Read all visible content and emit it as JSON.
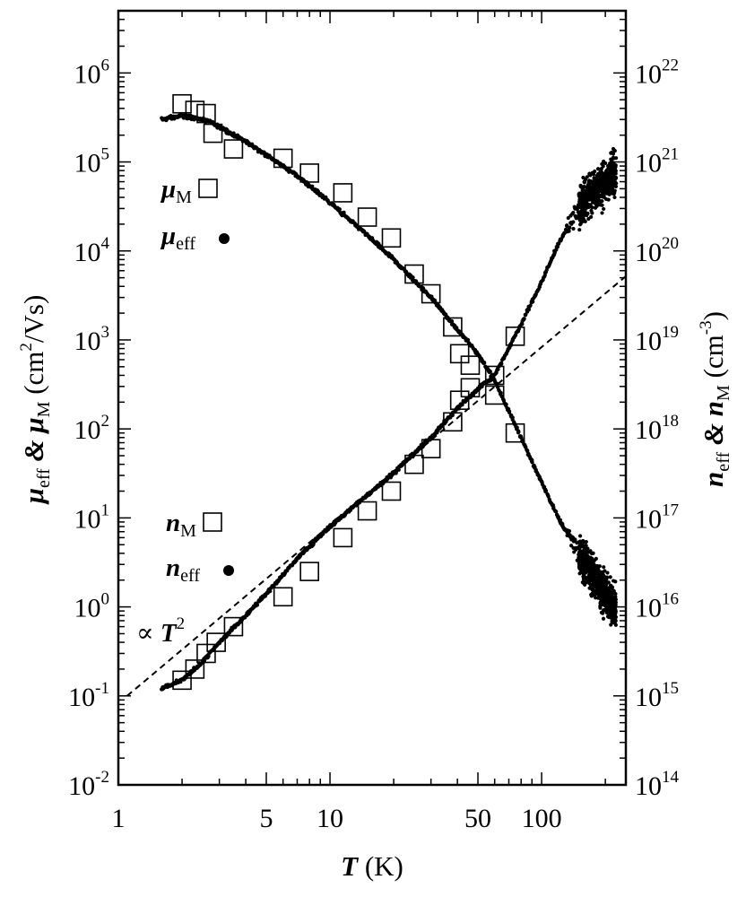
{
  "chart_data": {
    "type": "scatter",
    "x_axis": {
      "label": {
        "var": "T",
        "unit": " (K)"
      },
      "scale": "log",
      "range": [
        1,
        250
      ],
      "tick_labels": [
        "1",
        "5",
        "10",
        "50",
        "100"
      ],
      "tick_values": [
        1,
        5,
        10,
        50,
        100
      ]
    },
    "y_axis_left": {
      "label": {
        "part1": "μ",
        "sub1": "eff",
        "amp": " & ",
        "part2": "μ",
        "sub2": "M",
        "unit": " (cm",
        "sup": "2",
        "unit_end": "/Vs)"
      },
      "scale": "log",
      "range": [
        0.01,
        5000000
      ],
      "tick_labels": [
        {
          "base": "10",
          "exp": "6",
          "value": 1000000
        },
        {
          "base": "10",
          "exp": "5",
          "value": 100000
        },
        {
          "base": "10",
          "exp": "4",
          "value": 10000
        },
        {
          "base": "10",
          "exp": "3",
          "value": 1000
        },
        {
          "base": "10",
          "exp": "2",
          "value": 100
        },
        {
          "base": "10",
          "exp": "1",
          "value": 10
        },
        {
          "base": "10",
          "exp": "0",
          "value": 1
        },
        {
          "base": "10",
          "exp": "-1",
          "value": 0.1
        },
        {
          "base": "10",
          "exp": "-2",
          "value": 0.01
        }
      ]
    },
    "y_axis_right": {
      "label": {
        "part1": "n",
        "sub1": "eff",
        "amp": " & ",
        "part2": "n",
        "sub2": "M",
        "unit": " (cm",
        "sup": "-3",
        "unit_end": ")"
      },
      "scale": "log",
      "range": [
        100000000000000,
        5e+22
      ],
      "tick_labels": [
        {
          "base": "10",
          "exp": "22",
          "value": 1e+22
        },
        {
          "base": "10",
          "exp": "21",
          "value": 1e+21
        },
        {
          "base": "10",
          "exp": "20",
          "value": 1e+20
        },
        {
          "base": "10",
          "exp": "19",
          "value": 1e+19
        },
        {
          "base": "10",
          "exp": "18",
          "value": 1e+18
        },
        {
          "base": "10",
          "exp": "17",
          "value": 1e+17
        },
        {
          "base": "10",
          "exp": "16",
          "value": 1e+16
        },
        {
          "base": "10",
          "exp": "15",
          "value": 1000000000000000.0
        },
        {
          "base": "10",
          "exp": "14",
          "value": 100000000000000.0
        }
      ]
    },
    "series": [
      {
        "name": "μM",
        "axis": "left",
        "marker": "open-square",
        "x": [
          2.0,
          2.3,
          2.6,
          2.8,
          3.5,
          6.0,
          8.0,
          11.5,
          15.0,
          19.5,
          25.0,
          30.0,
          38.0,
          41.0,
          46.0,
          60.0,
          75.0
        ],
        "y": [
          450000,
          380000,
          350000,
          210000,
          140000,
          110000,
          75000,
          45000,
          24000,
          14000,
          5500,
          3300,
          1400,
          700,
          520,
          240,
          90
        ]
      },
      {
        "name": "μeff",
        "axis": "left",
        "marker": "filled-dot",
        "x": [
          1.6,
          2.0,
          2.5,
          3.0,
          4.0,
          5.0,
          7.0,
          10.0,
          15.0,
          20.0,
          30.0,
          40.0,
          50.0,
          60.0,
          80.0,
          100.0,
          120.0,
          150.0,
          180.0,
          220.0
        ],
        "y": [
          300000,
          330000,
          300000,
          250000,
          170000,
          120000,
          70000,
          35000,
          15000,
          8000,
          3000,
          1300,
          700,
          350,
          80,
          25,
          10,
          4,
          2,
          1
        ]
      },
      {
        "name": "nM",
        "axis": "right",
        "marker": "open-square",
        "x": [
          2.0,
          2.3,
          2.6,
          2.9,
          3.5,
          6.0,
          8.0,
          11.5,
          15.0,
          19.5,
          25.0,
          30.0,
          38.0,
          41.0,
          46.0,
          60.0,
          75.0
        ],
        "y": [
          1500000000000000.0,
          2000000000000000.0,
          3000000000000000.0,
          4000000000000000.0,
          6000000000000000.0,
          1.3e+16,
          2.5e+16,
          6e+16,
          1.2e+17,
          2e+17,
          4e+17,
          6e+17,
          1.2e+18,
          2.1e+18,
          2.9e+18,
          4e+18,
          1.1e+19
        ]
      },
      {
        "name": "neff",
        "axis": "right",
        "marker": "filled-dot",
        "x": [
          1.6,
          2.0,
          2.5,
          3.0,
          4.0,
          5.0,
          7.0,
          10.0,
          15.0,
          20.0,
          30.0,
          40.0,
          50.0,
          60.0,
          80.0,
          100.0,
          120.0,
          150.0,
          180.0,
          220.0
        ],
        "y": [
          1200000000000000.0,
          1500000000000000.0,
          2400000000000000.0,
          4000000000000000.0,
          8000000000000000.0,
          1.4e+16,
          3.5e+16,
          8e+16,
          1.8e+17,
          3.2e+17,
          8e+17,
          1.7e+18,
          2.8e+18,
          4e+18,
          1.5e+19,
          4.5e+19,
          1.2e+20,
          3e+20,
          5e+20,
          7e+20
        ]
      },
      {
        "name": "∝ T²",
        "axis": "right",
        "marker": "dashed-line",
        "x": [
          1.1,
          250
        ],
        "y": [
          1000000000000000.0,
          5.2e+19
        ]
      }
    ],
    "legend": [
      {
        "symbol": "μ",
        "sub": "M",
        "marker": "open-square"
      },
      {
        "symbol": "μ",
        "sub": "eff",
        "marker": "filled-dot"
      },
      {
        "symbol": "n",
        "sub": "M",
        "marker": "open-square"
      },
      {
        "symbol": "n",
        "sub": "eff",
        "marker": "filled-dot"
      }
    ],
    "annotation": {
      "prefix": "∝ ",
      "var": "T",
      "sup": "2"
    },
    "grid": false
  }
}
